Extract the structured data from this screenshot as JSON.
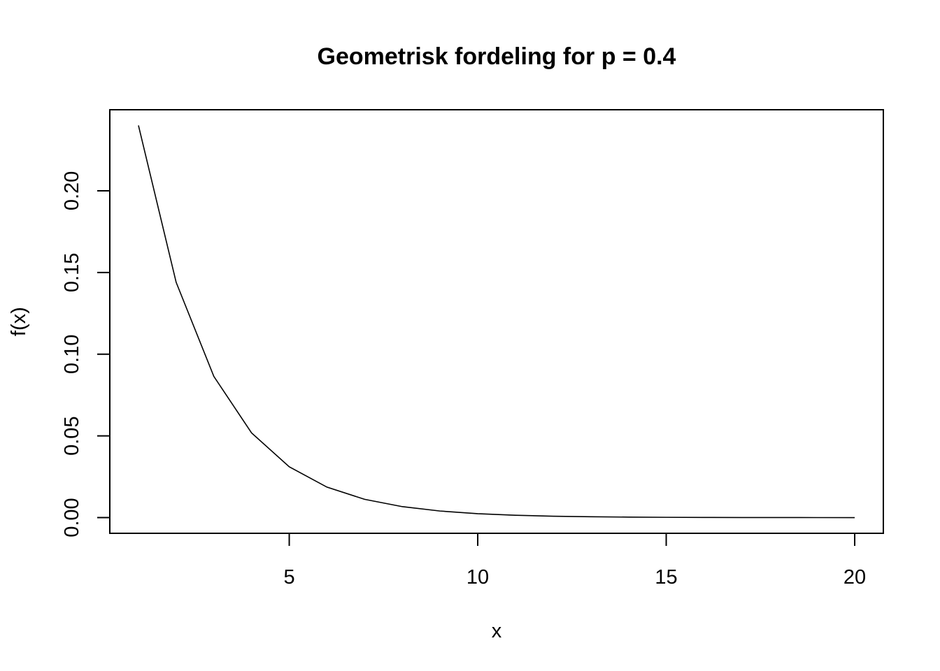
{
  "chart_data": {
    "type": "line",
    "title": "Geometrisk fordeling for p = 0.4",
    "xlabel": "x",
    "ylabel": "f(x)",
    "x": [
      1,
      2,
      3,
      4,
      5,
      6,
      7,
      8,
      9,
      10,
      11,
      12,
      13,
      14,
      15,
      16,
      17,
      18,
      19,
      20
    ],
    "series": [
      {
        "values": [
          0.24,
          0.144,
          0.0864,
          0.05184,
          0.031104,
          0.0186624,
          0.01119744,
          0.006718464,
          0.004031078,
          0.002418647,
          0.001451188,
          0.000870713,
          0.000522428,
          0.000313457,
          0.000188074,
          0.000112844,
          6.77066e-05,
          4.0624e-05,
          2.43744e-05,
          1.46246e-05
        ],
        "color": "#000000"
      }
    ],
    "xlim": [
      0.24,
      20.76
    ],
    "ylim": [
      -0.0096,
      0.2496
    ],
    "xticks": [
      5,
      10,
      15,
      20
    ],
    "xtick_labels": [
      "5",
      "10",
      "15",
      "20"
    ],
    "yticks": [
      0,
      0.05,
      0.1,
      0.15,
      0.2
    ],
    "ytick_labels": [
      "0.00",
      "0.05",
      "0.10",
      "0.15",
      "0.20"
    ],
    "grid": false,
    "legend": "none"
  }
}
